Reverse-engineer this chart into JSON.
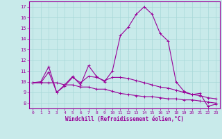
{
  "xlabel": "Windchill (Refroidissement éolien,°C)",
  "background_color": "#c8eaea",
  "grid_color": "#a8d8d8",
  "line_color": "#990099",
  "xlim": [
    -0.5,
    23.5
  ],
  "ylim": [
    7.5,
    17.5
  ],
  "xticks": [
    0,
    1,
    2,
    3,
    4,
    5,
    6,
    7,
    8,
    9,
    10,
    11,
    12,
    13,
    14,
    15,
    16,
    17,
    18,
    19,
    20,
    21,
    22,
    23
  ],
  "yticks": [
    8,
    9,
    10,
    11,
    12,
    13,
    14,
    15,
    16,
    17
  ],
  "series1_x": [
    0,
    1,
    2,
    3,
    4,
    5,
    6,
    7,
    8,
    9,
    10,
    11,
    12,
    13,
    14,
    15,
    16,
    17,
    18,
    19,
    20,
    21,
    22,
    23
  ],
  "series1_y": [
    9.9,
    10.0,
    11.4,
    9.0,
    9.7,
    10.5,
    9.7,
    11.5,
    10.5,
    10.0,
    11.0,
    14.3,
    15.1,
    16.3,
    17.0,
    16.3,
    14.5,
    13.8,
    10.0,
    9.1,
    8.8,
    8.9,
    7.7,
    7.9
  ],
  "series2_x": [
    0,
    1,
    2,
    3,
    4,
    5,
    6,
    7,
    8,
    9,
    10,
    11,
    12,
    13,
    14,
    15,
    16,
    17,
    18,
    19,
    20,
    21,
    22,
    23
  ],
  "series2_y": [
    9.9,
    9.9,
    10.9,
    9.0,
    9.6,
    10.4,
    9.9,
    10.5,
    10.4,
    10.1,
    10.4,
    10.4,
    10.3,
    10.1,
    9.9,
    9.7,
    9.5,
    9.4,
    9.2,
    9.0,
    8.8,
    8.7,
    8.5,
    8.4
  ],
  "series3_x": [
    0,
    1,
    2,
    3,
    4,
    5,
    6,
    7,
    8,
    9,
    10,
    11,
    12,
    13,
    14,
    15,
    16,
    17,
    18,
    19,
    20,
    21,
    22,
    23
  ],
  "series3_y": [
    9.9,
    9.9,
    9.9,
    9.9,
    9.7,
    9.7,
    9.5,
    9.5,
    9.3,
    9.3,
    9.1,
    8.9,
    8.8,
    8.7,
    8.6,
    8.6,
    8.5,
    8.4,
    8.4,
    8.3,
    8.3,
    8.2,
    8.1,
    8.0
  ]
}
